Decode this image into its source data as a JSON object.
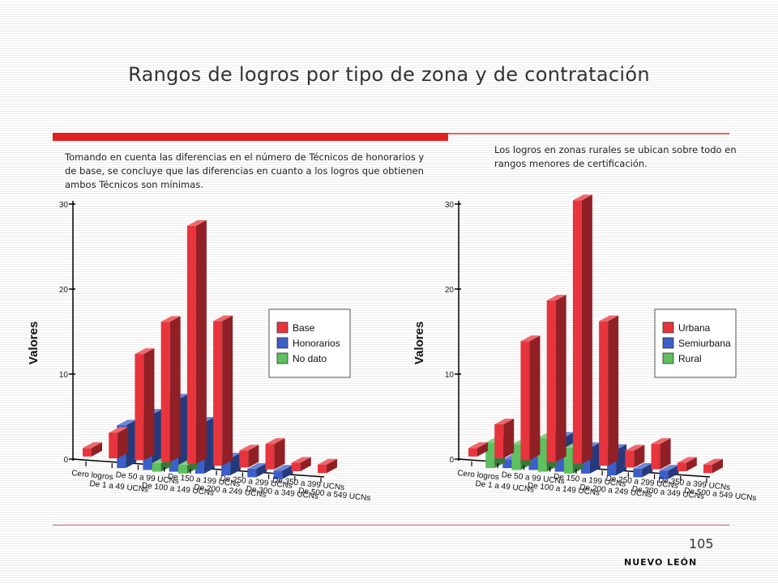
{
  "title": "Rangos de logros por tipo de zona y de contratación",
  "caption_left": "Tomando en cuenta las diferencias en el número de Técnicos de honorarios y de base, se concluye que las diferencias en cuanto a los logros que obtienen ambos Técnicos son mínimas.",
  "caption_right": "Los logros en zonas rurales se ubican sobre todo en rangos menores de certificación.",
  "page_number": "105",
  "footer": "NUEVO LEÓN",
  "chart_data": [
    {
      "type": "bar",
      "ylabel": "Valores",
      "ylim": [
        0,
        30
      ],
      "yticks": [
        0,
        10,
        20,
        30
      ],
      "grid": false,
      "legend_position": "right",
      "categories": [
        "Cero logros",
        "De 1 a 49 UCNs",
        "De 50 a 99 UCNs",
        "De 100 a 149 UCNs",
        "De 150 a 199 UCNs",
        "De 200 a 249 UCNs",
        "De 250 a 299 UCNs",
        "De 300 a 349 UCNs",
        "De 350 a 399 UCNs",
        "De 500 a 549 UCNs"
      ],
      "series": [
        {
          "name": "Base",
          "color": "#e8343c",
          "values": [
            1,
            3,
            12.5,
            16.5,
            28,
            17,
            2,
            3,
            1,
            1
          ]
        },
        {
          "name": "Honorarios",
          "color": "#3c5ec8",
          "values": [
            0,
            5,
            6.5,
            8.5,
            6,
            2,
            1,
            1,
            0,
            0
          ]
        },
        {
          "name": "No dato",
          "color": "#5ec05e",
          "values": [
            0,
            0,
            0,
            1,
            1,
            0,
            0,
            0,
            0,
            0
          ]
        }
      ]
    },
    {
      "type": "bar",
      "ylabel": "Valores",
      "ylim": [
        0,
        30
      ],
      "yticks": [
        0,
        10,
        20,
        30
      ],
      "grid": false,
      "legend_position": "right",
      "categories": [
        "Cero logros",
        "De 1 a 49 UCNs",
        "De 50 a 99 UCNs",
        "De 100 a 149 UCNs",
        "De 150 a 199 UCNs",
        "De 200 a 249 UCNs",
        "De 250 a 299 UCNs",
        "De 300 a 349 UCNs",
        "De 350 a 399 UCNs",
        "De 500 a 549 UCNs"
      ],
      "series": [
        {
          "name": "Urbana",
          "color": "#e8343c",
          "values": [
            1,
            4,
            14,
            19,
            31,
            17,
            2,
            3,
            1,
            1
          ]
        },
        {
          "name": "Semiurbana",
          "color": "#3c5ec8",
          "values": [
            0,
            1,
            3,
            4,
            3,
            3,
            1,
            1,
            0,
            0
          ]
        },
        {
          "name": "Rural",
          "color": "#5ec05e",
          "values": [
            0,
            3,
            3,
            4,
            3,
            0,
            0,
            0,
            0,
            0
          ]
        }
      ]
    }
  ]
}
